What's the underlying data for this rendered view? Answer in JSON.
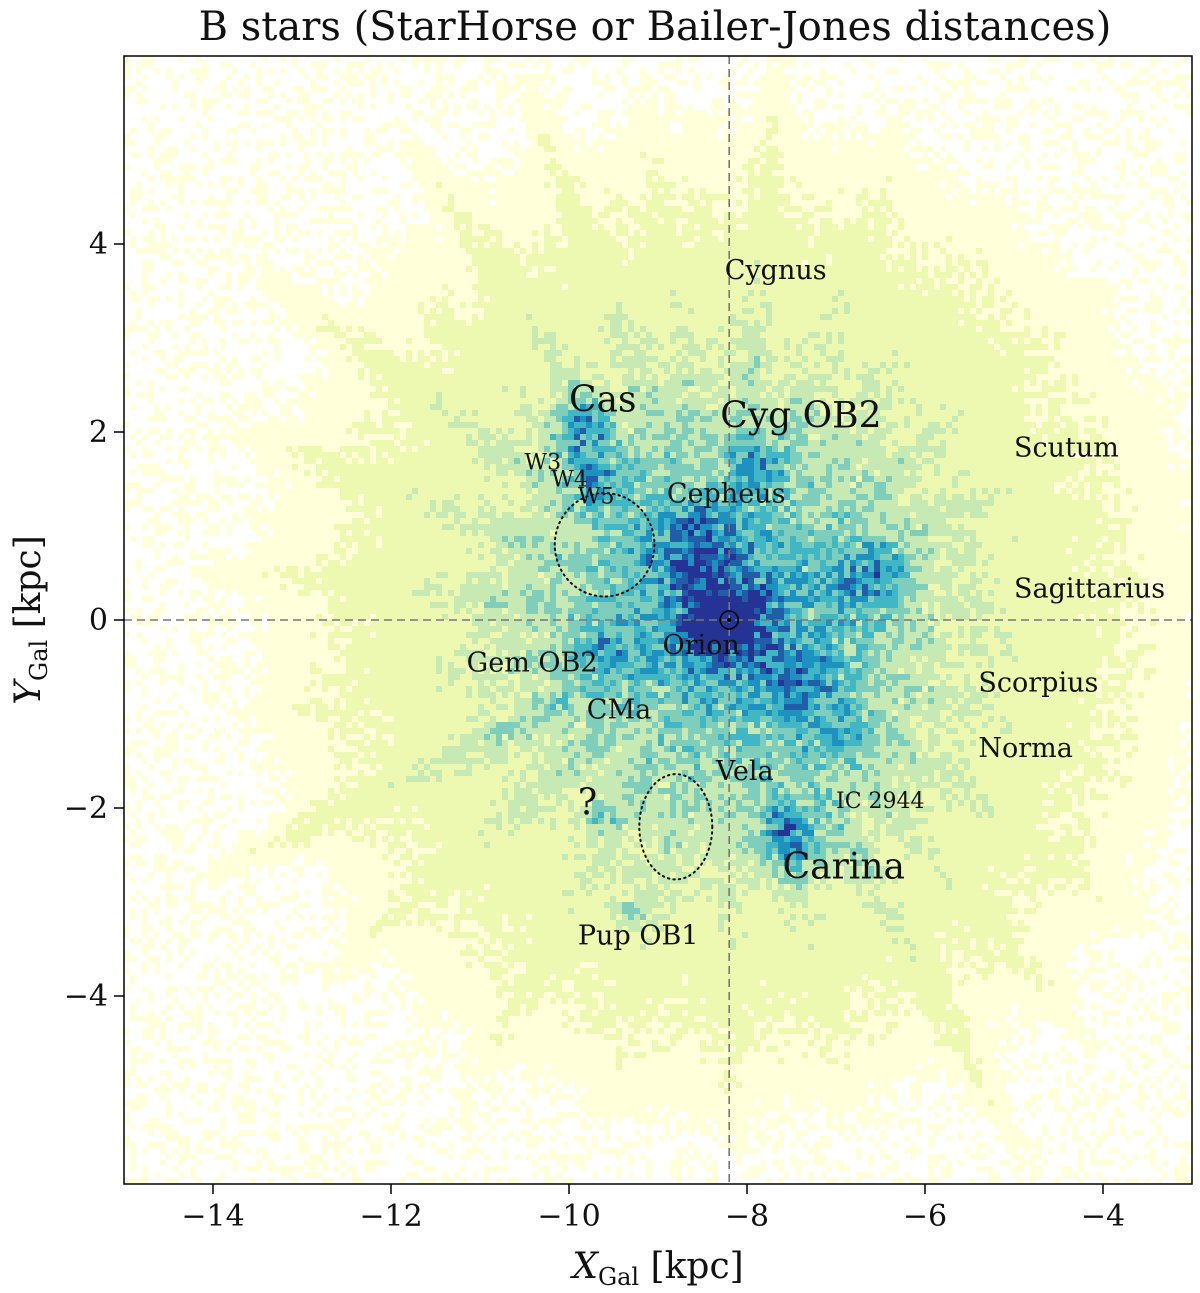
{
  "chart_data": {
    "type": "heatmap",
    "title": "B stars (StarHorse or Bailer-Jones distances)",
    "xlabel": {
      "main": "X",
      "sub": "Gal",
      "unit": " [kpc]"
    },
    "ylabel": {
      "main": "Y",
      "sub": "Gal",
      "unit": " [kpc]"
    },
    "xlim": [
      -15,
      -3
    ],
    "ylim": [
      -6,
      6
    ],
    "x_ticks": [
      -14,
      -12,
      -10,
      -8,
      -6,
      -4
    ],
    "y_ticks": [
      -4,
      -2,
      0,
      2,
      4
    ],
    "x_tick_labels": [
      "−14",
      "−12",
      "−10",
      "−8",
      "−6",
      "−4"
    ],
    "y_tick_labels": [
      "−4",
      "−2",
      "0",
      "2",
      "4"
    ],
    "colormap": [
      "#ffffd9",
      "#edf8b1",
      "#c7e9b4",
      "#7fcdbb",
      "#41b6c4",
      "#1d91c0",
      "#225ea8",
      "#253494"
    ],
    "sun": {
      "x": -8.2,
      "y": 0
    },
    "reference_lines": {
      "x": -8.2,
      "y": 0
    },
    "annotations": [
      {
        "text": "Cygnus",
        "x": -8.25,
        "y": 3.63,
        "size": "medium"
      },
      {
        "text": "Cas",
        "x": -10.0,
        "y": 2.22,
        "size": "large"
      },
      {
        "text": "Cyg OB2",
        "x": -8.3,
        "y": 2.05,
        "size": "large"
      },
      {
        "text": "Scutum",
        "x": -5.0,
        "y": 1.74,
        "size": "medium"
      },
      {
        "text": "W3",
        "x": -10.5,
        "y": 1.6,
        "size": "small"
      },
      {
        "text": "W4",
        "x": -10.2,
        "y": 1.42,
        "size": "small"
      },
      {
        "text": "W5",
        "x": -9.9,
        "y": 1.24,
        "size": "small"
      },
      {
        "text": "Cepheus",
        "x": -8.9,
        "y": 1.25,
        "size": "medium"
      },
      {
        "text": "Sagittarius",
        "x": -5.0,
        "y": 0.24,
        "size": "medium"
      },
      {
        "text": "Orion",
        "x": -8.95,
        "y": -0.36,
        "size": "medium"
      },
      {
        "text": "Gem OB2",
        "x": -11.15,
        "y": -0.55,
        "size": "medium"
      },
      {
        "text": "Scorpius",
        "x": -5.4,
        "y": -0.76,
        "size": "medium"
      },
      {
        "text": "CMa",
        "x": -9.8,
        "y": -1.05,
        "size": "medium"
      },
      {
        "text": "Norma",
        "x": -5.4,
        "y": -1.46,
        "size": "medium"
      },
      {
        "text": "Vela",
        "x": -8.35,
        "y": -1.7,
        "size": "medium"
      },
      {
        "text": "IC 2944",
        "x": -7.0,
        "y": -2.0,
        "size": "small"
      },
      {
        "text": "?",
        "x": -9.9,
        "y": -2.07,
        "size": "large"
      },
      {
        "text": "Carina",
        "x": -7.6,
        "y": -2.75,
        "size": "large"
      },
      {
        "text": "Pup OB1",
        "x": -9.9,
        "y": -3.45,
        "size": "medium"
      }
    ],
    "regions": [
      {
        "shape": "ellipse",
        "style": "dotted",
        "cx": -9.6,
        "cy": 0.8,
        "rx": 0.56,
        "ry": 0.55
      },
      {
        "shape": "ellipse",
        "style": "dotted",
        "cx": -8.8,
        "cy": -2.2,
        "rx": 0.41,
        "ry": 0.56
      }
    ],
    "grid": false,
    "legend": "none"
  }
}
